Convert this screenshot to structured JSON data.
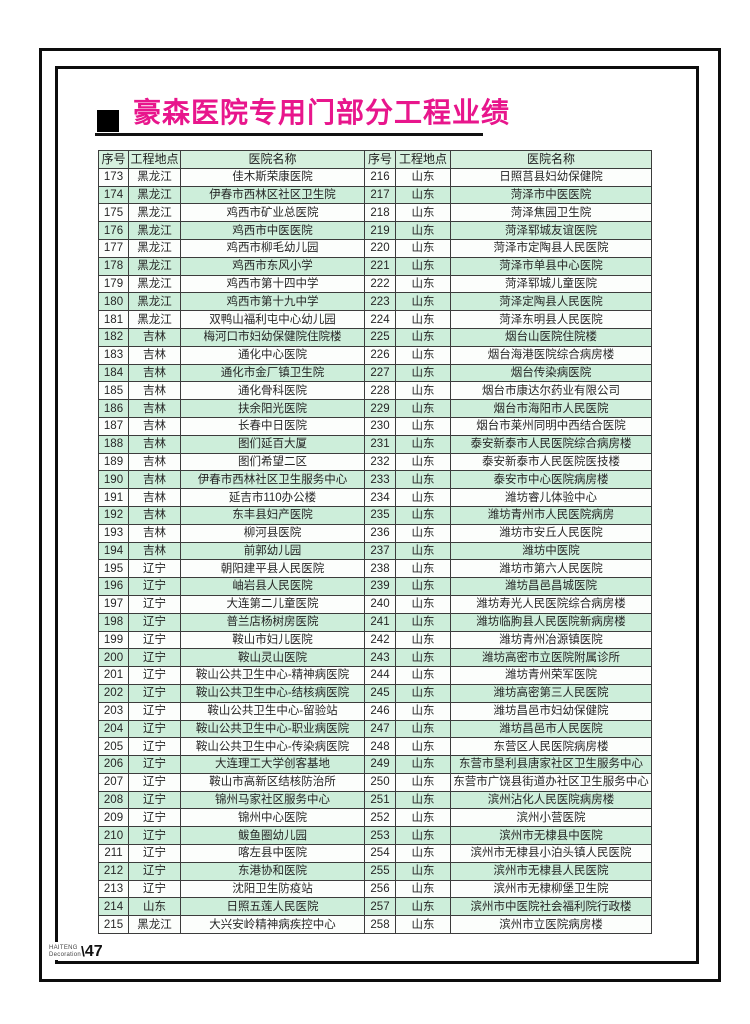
{
  "title": {
    "text": "豪森医院专用门部分工程业绩"
  },
  "colors": {
    "accent_pink": "#e8168c",
    "header_green": "#d6f0de",
    "stripe_green": "#cdeeda",
    "frame_black": "#0d0d0d"
  },
  "footer": {
    "brand_line1": "HAITENG",
    "brand_line2": "Decoration",
    "page_number": "47"
  },
  "table": {
    "headers": [
      "序号",
      "工程地点",
      "医院名称",
      "序号",
      "工程地点",
      "医院名称"
    ],
    "left": [
      {
        "no": "173",
        "loc": "黑龙江",
        "name": "佳木斯荣康医院"
      },
      {
        "no": "174",
        "loc": "黑龙江",
        "name": "伊春市西林区社区卫生院"
      },
      {
        "no": "175",
        "loc": "黑龙江",
        "name": "鸡西市矿业总医院"
      },
      {
        "no": "176",
        "loc": "黑龙江",
        "name": "鸡西市中医医院"
      },
      {
        "no": "177",
        "loc": "黑龙江",
        "name": "鸡西市柳毛幼儿园"
      },
      {
        "no": "178",
        "loc": "黑龙江",
        "name": "鸡西市东风小学"
      },
      {
        "no": "179",
        "loc": "黑龙江",
        "name": "鸡西市第十四中学"
      },
      {
        "no": "180",
        "loc": "黑龙江",
        "name": "鸡西市第十九中学"
      },
      {
        "no": "181",
        "loc": "黑龙江",
        "name": "双鸭山福利屯中心幼儿园"
      },
      {
        "no": "182",
        "loc": "吉林",
        "name": "梅河口市妇幼保健院住院楼"
      },
      {
        "no": "183",
        "loc": "吉林",
        "name": "通化中心医院"
      },
      {
        "no": "184",
        "loc": "吉林",
        "name": "通化市金厂镇卫生院"
      },
      {
        "no": "185",
        "loc": "吉林",
        "name": "通化骨科医院"
      },
      {
        "no": "186",
        "loc": "吉林",
        "name": "扶余阳光医院"
      },
      {
        "no": "187",
        "loc": "吉林",
        "name": "长春中日医院"
      },
      {
        "no": "188",
        "loc": "吉林",
        "name": "图们延百大厦"
      },
      {
        "no": "189",
        "loc": "吉林",
        "name": "图们希望二区"
      },
      {
        "no": "190",
        "loc": "吉林",
        "name": "伊春市西林社区卫生服务中心"
      },
      {
        "no": "191",
        "loc": "吉林",
        "name": "延吉市110办公楼"
      },
      {
        "no": "192",
        "loc": "吉林",
        "name": "东丰县妇产医院"
      },
      {
        "no": "193",
        "loc": "吉林",
        "name": "柳河县医院"
      },
      {
        "no": "194",
        "loc": "吉林",
        "name": "前郭幼儿园"
      },
      {
        "no": "195",
        "loc": "辽宁",
        "name": "朝阳建平县人民医院"
      },
      {
        "no": "196",
        "loc": "辽宁",
        "name": "岫岩县人民医院"
      },
      {
        "no": "197",
        "loc": "辽宁",
        "name": "大连第二儿童医院"
      },
      {
        "no": "198",
        "loc": "辽宁",
        "name": "普兰店杨树房医院"
      },
      {
        "no": "199",
        "loc": "辽宁",
        "name": "鞍山市妇儿医院"
      },
      {
        "no": "200",
        "loc": "辽宁",
        "name": "鞍山灵山医院"
      },
      {
        "no": "201",
        "loc": "辽宁",
        "name": "鞍山公共卫生中心-精神病医院"
      },
      {
        "no": "202",
        "loc": "辽宁",
        "name": "鞍山公共卫生中心-结核病医院"
      },
      {
        "no": "203",
        "loc": "辽宁",
        "name": "鞍山公共卫生中心-留验站"
      },
      {
        "no": "204",
        "loc": "辽宁",
        "name": "鞍山公共卫生中心-职业病医院"
      },
      {
        "no": "205",
        "loc": "辽宁",
        "name": "鞍山公共卫生中心-传染病医院"
      },
      {
        "no": "206",
        "loc": "辽宁",
        "name": "大连理工大学创客基地"
      },
      {
        "no": "207",
        "loc": "辽宁",
        "name": "鞍山市高新区结核防治所"
      },
      {
        "no": "208",
        "loc": "辽宁",
        "name": "锦州马家社区服务中心"
      },
      {
        "no": "209",
        "loc": "辽宁",
        "name": "锦州中心医院"
      },
      {
        "no": "210",
        "loc": "辽宁",
        "name": "鲅鱼圈幼儿园"
      },
      {
        "no": "211",
        "loc": "辽宁",
        "name": "喀左县中医院"
      },
      {
        "no": "212",
        "loc": "辽宁",
        "name": "东港协和医院"
      },
      {
        "no": "213",
        "loc": "辽宁",
        "name": "沈阳卫生防疫站"
      },
      {
        "no": "214",
        "loc": "山东",
        "name": "日照五莲人民医院"
      },
      {
        "no": "215",
        "loc": "黑龙江",
        "name": "大兴安岭精神病疾控中心"
      }
    ],
    "right": [
      {
        "no": "216",
        "loc": "山东",
        "name": "日照莒县妇幼保健院"
      },
      {
        "no": "217",
        "loc": "山东",
        "name": "菏泽市中医医院"
      },
      {
        "no": "218",
        "loc": "山东",
        "name": "菏泽焦园卫生院"
      },
      {
        "no": "219",
        "loc": "山东",
        "name": "菏泽郓城友谊医院"
      },
      {
        "no": "220",
        "loc": "山东",
        "name": "菏泽市定陶县人民医院"
      },
      {
        "no": "221",
        "loc": "山东",
        "name": "菏泽市单县中心医院"
      },
      {
        "no": "222",
        "loc": "山东",
        "name": "菏泽郓城儿童医院"
      },
      {
        "no": "223",
        "loc": "山东",
        "name": "菏泽定陶县人民医院"
      },
      {
        "no": "224",
        "loc": "山东",
        "name": "菏泽东明县人民医院"
      },
      {
        "no": "225",
        "loc": "山东",
        "name": "烟台山医院住院楼"
      },
      {
        "no": "226",
        "loc": "山东",
        "name": "烟台海港医院综合病房楼"
      },
      {
        "no": "227",
        "loc": "山东",
        "name": "烟台传染病医院"
      },
      {
        "no": "228",
        "loc": "山东",
        "name": "烟台市康达尔药业有限公司"
      },
      {
        "no": "229",
        "loc": "山东",
        "name": "烟台市海阳市人民医院"
      },
      {
        "no": "230",
        "loc": "山东",
        "name": "烟台市莱州同明中西结合医院"
      },
      {
        "no": "231",
        "loc": "山东",
        "name": "泰安新泰市人民医院综合病房楼"
      },
      {
        "no": "232",
        "loc": "山东",
        "name": "泰安新泰市人民医院医技楼"
      },
      {
        "no": "233",
        "loc": "山东",
        "name": "泰安市中心医院病房楼"
      },
      {
        "no": "234",
        "loc": "山东",
        "name": "潍坊睿儿体验中心"
      },
      {
        "no": "235",
        "loc": "山东",
        "name": "潍坊青州市人民医院病房"
      },
      {
        "no": "236",
        "loc": "山东",
        "name": "潍坊市安丘人民医院"
      },
      {
        "no": "237",
        "loc": "山东",
        "name": "潍坊中医院"
      },
      {
        "no": "238",
        "loc": "山东",
        "name": "潍坊市第六人民医院"
      },
      {
        "no": "239",
        "loc": "山东",
        "name": "潍坊昌邑昌城医院"
      },
      {
        "no": "240",
        "loc": "山东",
        "name": "潍坊寿光人民医院综合病房楼"
      },
      {
        "no": "241",
        "loc": "山东",
        "name": "潍坊临朐县人民医院新病房楼"
      },
      {
        "no": "242",
        "loc": "山东",
        "name": "潍坊青州冶源镇医院"
      },
      {
        "no": "243",
        "loc": "山东",
        "name": "潍坊高密市立医院附属诊所"
      },
      {
        "no": "244",
        "loc": "山东",
        "name": "潍坊青州荣军医院"
      },
      {
        "no": "245",
        "loc": "山东",
        "name": "潍坊高密第三人民医院"
      },
      {
        "no": "246",
        "loc": "山东",
        "name": "潍坊昌邑市妇幼保健院"
      },
      {
        "no": "247",
        "loc": "山东",
        "name": "潍坊昌邑市人民医院"
      },
      {
        "no": "248",
        "loc": "山东",
        "name": "东营区人民医院病房楼"
      },
      {
        "no": "249",
        "loc": "山东",
        "name": "东营市垦利县唐家社区卫生服务中心"
      },
      {
        "no": "250",
        "loc": "山东",
        "name": "东营市广饶县街道办社区卫生服务中心"
      },
      {
        "no": "251",
        "loc": "山东",
        "name": "滨州沾化人民医院病房楼"
      },
      {
        "no": "252",
        "loc": "山东",
        "name": "滨州小营医院"
      },
      {
        "no": "253",
        "loc": "山东",
        "name": "滨州市无棣县中医院"
      },
      {
        "no": "254",
        "loc": "山东",
        "name": "滨州市无棣县小泊头镇人民医院"
      },
      {
        "no": "255",
        "loc": "山东",
        "name": "滨州市无棣县人民医院"
      },
      {
        "no": "256",
        "loc": "山东",
        "name": "滨州市无棣柳堡卫生院"
      },
      {
        "no": "257",
        "loc": "山东",
        "name": "滨州市中医院社会福利院行政楼"
      },
      {
        "no": "258",
        "loc": "山东",
        "name": "滨州市立医院病房楼"
      }
    ]
  }
}
